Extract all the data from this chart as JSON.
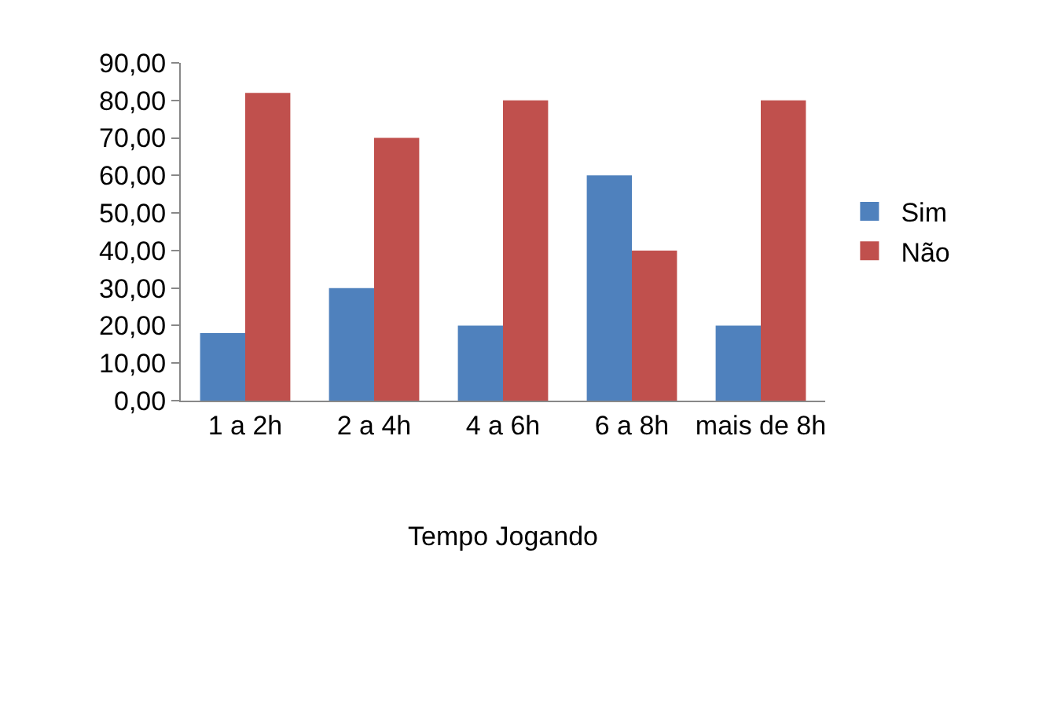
{
  "chart_data": {
    "type": "bar",
    "categories": [
      "1 a 2h",
      "2 a 4h",
      "4 a 6h",
      "6 a 8h",
      "mais de 8h"
    ],
    "xlabel": "Tempo Jogando",
    "series": [
      {
        "name": "Sim",
        "color": "#4f81bd",
        "values": [
          18,
          30,
          20,
          60,
          20
        ]
      },
      {
        "name": "Não",
        "color": "#c0504d",
        "values": [
          82,
          70,
          80,
          40,
          80
        ]
      }
    ],
    "ylim": [
      0,
      90
    ],
    "yticks": [
      {
        "value": 0,
        "label": "0,00"
      },
      {
        "value": 10,
        "label": "10,00"
      },
      {
        "value": 20,
        "label": "20,00"
      },
      {
        "value": 30,
        "label": "30,00"
      },
      {
        "value": 40,
        "label": "40,00"
      },
      {
        "value": 50,
        "label": "50,00"
      },
      {
        "value": 60,
        "label": "60,00"
      },
      {
        "value": 70,
        "label": "70,00"
      },
      {
        "value": 80,
        "label": "80,00"
      },
      {
        "value": 90,
        "label": "90,00"
      }
    ],
    "grid": false,
    "legend": "right"
  }
}
